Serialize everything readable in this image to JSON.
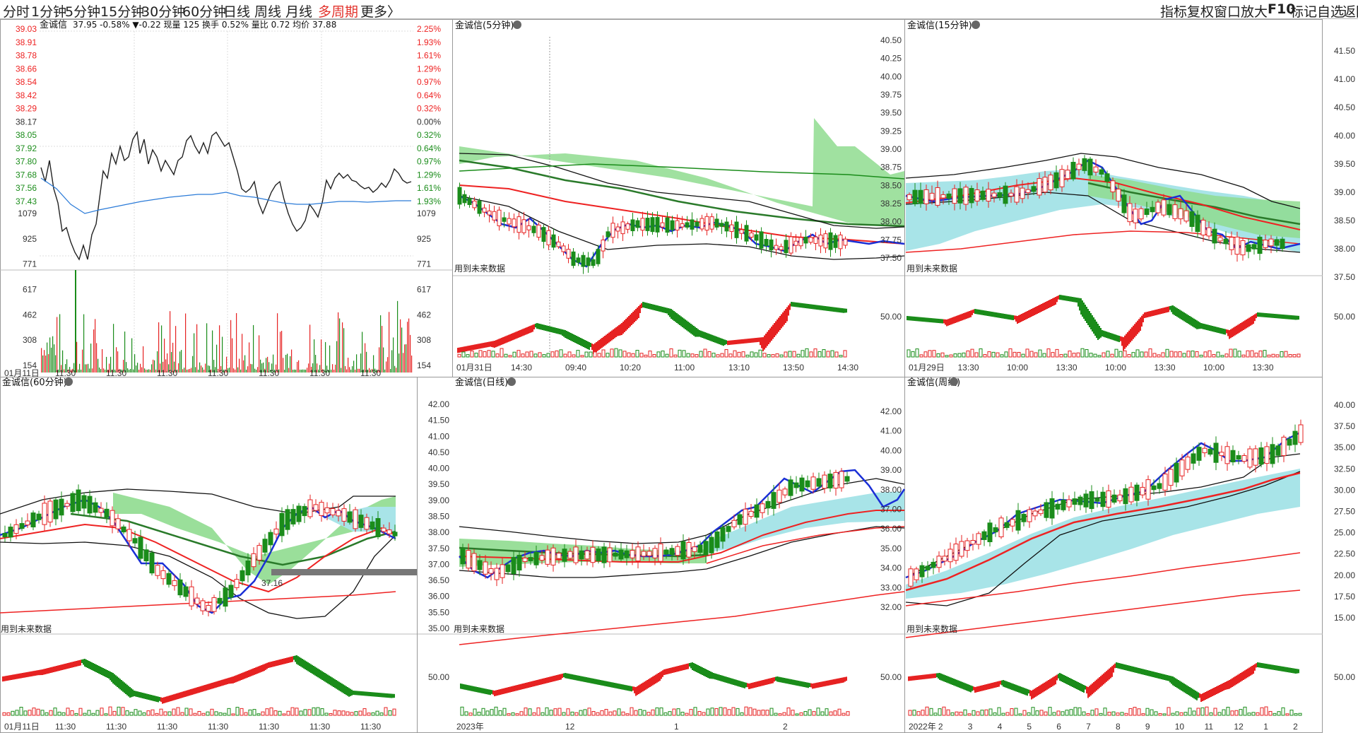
{
  "toolbar": {
    "tabs": [
      {
        "label": "分时",
        "active": false
      },
      {
        "label": "1分钟",
        "active": false
      },
      {
        "label": "5分钟",
        "active": false
      },
      {
        "label": "15分钟",
        "active": false
      },
      {
        "label": "30分钟",
        "active": false
      },
      {
        "label": "60分钟",
        "active": false
      },
      {
        "label": "日线",
        "active": false
      },
      {
        "label": "周线",
        "active": false
      },
      {
        "label": "月线",
        "active": false
      },
      {
        "label": "多周期",
        "active": true
      }
    ],
    "more_label": "更多〉",
    "right_items": [
      "指标",
      "复权",
      "窗口",
      "放大",
      "F10",
      "标记",
      "自选",
      "返回"
    ]
  },
  "intraday": {
    "title": "金诚信",
    "quote": "37.95 -0.58% ▼-0.22 现量 125 换手 0.52% 量比 0.72 均价 37.88",
    "price_ticks": [
      "39.03",
      "38.91",
      "38.78",
      "38.66",
      "38.54",
      "38.42",
      "38.29",
      "38.17",
      "38.05",
      "37.92",
      "37.80",
      "37.68",
      "37.56",
      "37.43"
    ],
    "pct_ticks": [
      "2.25%",
      "1.93%",
      "1.61%",
      "1.29%",
      "0.97%",
      "0.64%",
      "0.32%",
      "0.00%",
      "0.32%",
      "0.64%",
      "0.97%",
      "1.29%",
      "1.61%",
      "1.93%"
    ],
    "vol_ticks": [
      "1079",
      "925",
      "771",
      "617",
      "462",
      "308",
      "154"
    ],
    "x_labels": [
      "01月11日",
      "11:30",
      "11:30",
      "11:30",
      "11:30",
      "11:30",
      "11:30",
      "11:30"
    ]
  },
  "panels": [
    {
      "title": "金诚信(5分钟)",
      "note": "用到未来数据",
      "y_ticks": [],
      "osc_level": "",
      "x_labels": [
        "01月31日",
        "14:30",
        "09:40",
        "10:20",
        "11:00",
        "13:10",
        "13:50",
        "14:30"
      ]
    },
    {
      "title": "金诚信(15分钟)",
      "note": "用到未来数据",
      "y_ticks": [
        "40.50",
        "40.25",
        "40.00",
        "39.75",
        "39.50",
        "39.25",
        "39.00",
        "38.75",
        "38.50",
        "38.25",
        "38.00",
        "37.75",
        "37.50"
      ],
      "osc_level": "50.00",
      "x_labels": [
        "01月29日",
        "13:30",
        "10:00",
        "13:30",
        "10:00",
        "13:30",
        "10:00",
        "13:30"
      ]
    },
    {
      "title": "金诚信(60分钟)",
      "note": "用到未来数据",
      "y_ticks": [],
      "osc_level": "",
      "price_marker": "37.16",
      "x_labels": [
        "01月11日",
        "11:30",
        "11:30",
        "11:30",
        "11:30",
        "11:30",
        "11:30",
        "11:30"
      ]
    },
    {
      "title": "金诚信(日线)",
      "note": "用到未来数据",
      "y_ticks": [
        "42.00",
        "41.50",
        "41.00",
        "40.50",
        "40.00",
        "39.50",
        "39.00",
        "38.50",
        "38.00",
        "37.50",
        "37.00",
        "36.50",
        "36.00",
        "35.50",
        "35.00"
      ],
      "osc_level": "50.00",
      "x_labels": [
        "2023年",
        "12",
        "1",
        "2"
      ]
    },
    {
      "title": "金诚信(周线)",
      "note": "用到未来数据",
      "y_ticks": [
        "42.00",
        "41.00",
        "40.00",
        "39.00",
        "38.00",
        "37.00",
        "36.00",
        "35.00",
        "34.00",
        "33.00",
        "32.00"
      ],
      "osc_level": "50.00",
      "x_labels": [
        "2022年",
        "2",
        "3",
        "4",
        "5",
        "6",
        "7",
        "8",
        "9",
        "10",
        "11",
        "12",
        "1",
        "2"
      ]
    }
  ],
  "right_axis": {
    "upper_ticks": [
      "41.50",
      "41.00",
      "40.50",
      "40.00",
      "39.50",
      "39.00",
      "38.50",
      "38.00",
      "37.50"
    ],
    "upper_osc": "50.00",
    "lower_ticks": [
      "40.00",
      "37.50",
      "35.00",
      "32.50",
      "30.00",
      "27.50",
      "25.00",
      "22.50",
      "20.00",
      "17.50",
      "15.00"
    ],
    "lower_osc": "50.00"
  },
  "colors": {
    "up": "#e62222",
    "down": "#1a8c1a",
    "blue": "#1a2fd6",
    "band_green": "#7dd87d",
    "band_cyan": "#a8e4e8",
    "grid": "#cfcfcf"
  }
}
